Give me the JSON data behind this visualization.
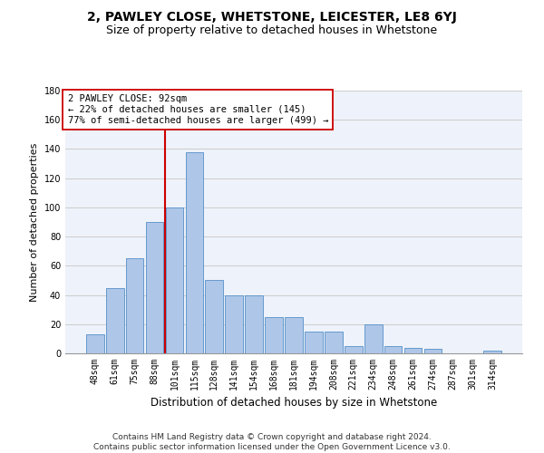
{
  "title1": "2, PAWLEY CLOSE, WHETSTONE, LEICESTER, LE8 6YJ",
  "title2": "Size of property relative to detached houses in Whetstone",
  "xlabel": "Distribution of detached houses by size in Whetstone",
  "ylabel": "Number of detached properties",
  "categories": [
    "48sqm",
    "61sqm",
    "75sqm",
    "88sqm",
    "101sqm",
    "115sqm",
    "128sqm",
    "141sqm",
    "154sqm",
    "168sqm",
    "181sqm",
    "194sqm",
    "208sqm",
    "221sqm",
    "234sqm",
    "248sqm",
    "261sqm",
    "274sqm",
    "287sqm",
    "301sqm",
    "314sqm"
  ],
  "values": [
    13,
    45,
    65,
    90,
    100,
    138,
    50,
    40,
    40,
    25,
    25,
    15,
    15,
    5,
    20,
    5,
    4,
    3,
    0,
    0,
    2
  ],
  "bar_color": "#aec6e8",
  "bar_edge_color": "#5590c8",
  "vline_color": "#cc0000",
  "annotation_text": "2 PAWLEY CLOSE: 92sqm\n← 22% of detached houses are smaller (145)\n77% of semi-detached houses are larger (499) →",
  "annotation_box_color": "#ffffff",
  "annotation_box_edge_color": "#cc0000",
  "ylim": [
    0,
    180
  ],
  "yticks": [
    0,
    20,
    40,
    60,
    80,
    100,
    120,
    140,
    160,
    180
  ],
  "grid_color": "#cccccc",
  "background_color": "#eef2fa",
  "footer": "Contains HM Land Registry data © Crown copyright and database right 2024.\nContains public sector information licensed under the Open Government Licence v3.0.",
  "title1_fontsize": 10,
  "title2_fontsize": 9,
  "xlabel_fontsize": 8.5,
  "ylabel_fontsize": 8,
  "tick_fontsize": 7,
  "footer_fontsize": 6.5,
  "annotation_fontsize": 7.5
}
